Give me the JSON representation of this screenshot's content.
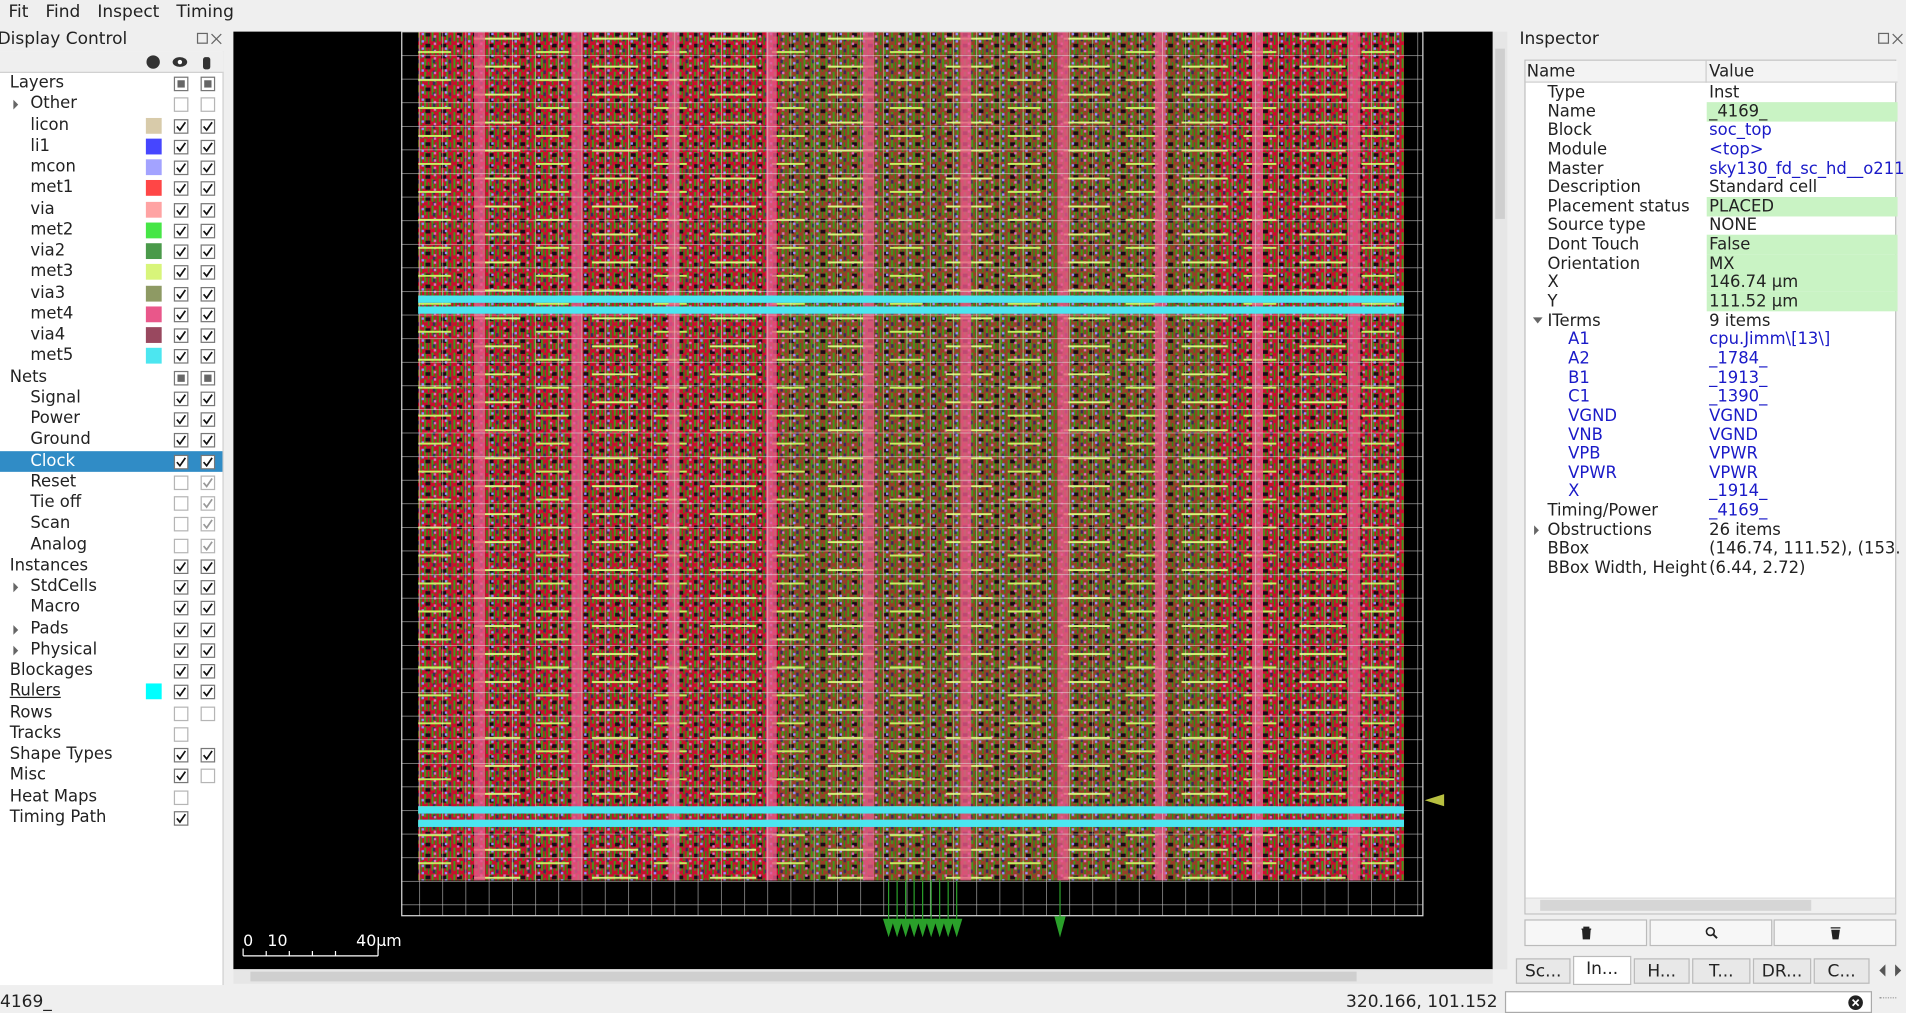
{
  "menu": [
    "Fit",
    "Find",
    "Inspect",
    "Timing"
  ],
  "display_control": {
    "title": "Display Control",
    "rows": [
      {
        "label": "Layers",
        "level": 0,
        "checks": [
          "mixed",
          "mixed"
        ]
      },
      {
        "label": "Other",
        "level": 1,
        "expand": "closed",
        "checks": [
          "off",
          "off"
        ]
      },
      {
        "label": "licon",
        "level": 1,
        "swatch": "#d8cbaa",
        "checks": [
          "on",
          "on"
        ]
      },
      {
        "label": "li1",
        "level": 1,
        "swatch": "#4646ff",
        "checks": [
          "on",
          "on"
        ]
      },
      {
        "label": "mcon",
        "level": 1,
        "swatch": "#a3a3ff",
        "checks": [
          "on",
          "on"
        ]
      },
      {
        "label": "met1",
        "level": 1,
        "swatch": "#ff4646",
        "checks": [
          "on",
          "on"
        ]
      },
      {
        "label": "via",
        "level": 1,
        "swatch": "#ffa3a3",
        "checks": [
          "on",
          "on"
        ]
      },
      {
        "label": "met2",
        "level": 1,
        "swatch": "#46e646",
        "checks": [
          "on",
          "on"
        ]
      },
      {
        "label": "via2",
        "level": 1,
        "swatch": "#4a9a4a",
        "checks": [
          "on",
          "on"
        ]
      },
      {
        "label": "met3",
        "level": 1,
        "swatch": "#d8f57a",
        "checks": [
          "on",
          "on"
        ]
      },
      {
        "label": "via3",
        "level": 1,
        "swatch": "#8e9a64",
        "checks": [
          "on",
          "on"
        ]
      },
      {
        "label": "met4",
        "level": 1,
        "swatch": "#e9578a",
        "checks": [
          "on",
          "on"
        ]
      },
      {
        "label": "via4",
        "level": 1,
        "swatch": "#99485f",
        "checks": [
          "on",
          "on"
        ]
      },
      {
        "label": "met5",
        "level": 1,
        "swatch": "#4ce6f0",
        "checks": [
          "on",
          "on"
        ]
      },
      {
        "label": "Nets",
        "level": 0,
        "checks": [
          "mixed",
          "mixed"
        ]
      },
      {
        "label": "Signal",
        "level": 1,
        "checks": [
          "on",
          "on"
        ]
      },
      {
        "label": "Power",
        "level": 1,
        "checks": [
          "on",
          "on"
        ]
      },
      {
        "label": "Ground",
        "level": 1,
        "checks": [
          "on",
          "on"
        ]
      },
      {
        "label": "Clock",
        "level": 1,
        "selected": true,
        "checks": [
          "on",
          "on"
        ]
      },
      {
        "label": "Reset",
        "level": 1,
        "checks": [
          "off",
          "dim"
        ]
      },
      {
        "label": "Tie off",
        "level": 1,
        "checks": [
          "off",
          "dim"
        ]
      },
      {
        "label": "Scan",
        "level": 1,
        "checks": [
          "off",
          "dim"
        ]
      },
      {
        "label": "Analog",
        "level": 1,
        "checks": [
          "off",
          "dim"
        ]
      },
      {
        "label": "Instances",
        "level": 0,
        "checks": [
          "on",
          "on"
        ]
      },
      {
        "label": "StdCells",
        "level": 1,
        "expand": "closed",
        "checks": [
          "on",
          "on"
        ]
      },
      {
        "label": "Macro",
        "level": 1,
        "checks": [
          "on",
          "on"
        ]
      },
      {
        "label": "Pads",
        "level": 1,
        "expand": "closed",
        "checks": [
          "on",
          "on"
        ]
      },
      {
        "label": "Physical",
        "level": 1,
        "expand": "closed",
        "checks": [
          "on",
          "on"
        ]
      },
      {
        "label": "Blockages",
        "level": 0,
        "checks": [
          "on",
          "on"
        ]
      },
      {
        "label": "Rulers",
        "level": 0,
        "underline": true,
        "swatch": "#00ffff",
        "checks": [
          "on",
          "on"
        ]
      },
      {
        "label": "Rows",
        "level": 0,
        "checks": [
          "off",
          "off"
        ]
      },
      {
        "label": "Tracks",
        "level": 0,
        "checks": [
          "off"
        ]
      },
      {
        "label": "Shape Types",
        "level": 0,
        "checks": [
          "on",
          "on"
        ]
      },
      {
        "label": "Misc",
        "level": 0,
        "checks": [
          "on",
          "off"
        ]
      },
      {
        "label": "Heat Maps",
        "level": 0,
        "checks": [
          "off"
        ]
      },
      {
        "label": "Timing Path",
        "level": 0,
        "checks": [
          "on"
        ]
      }
    ]
  },
  "layout_view": {
    "scale_bar": [
      "0",
      "10",
      "40µm"
    ]
  },
  "inspector": {
    "title": "Inspector",
    "columns": [
      "Name",
      "Value"
    ],
    "rows": [
      {
        "name": "Type",
        "value": "Inst",
        "level": 0
      },
      {
        "name": "Name",
        "value": "_4169_",
        "level": 0,
        "highlight": true
      },
      {
        "name": "Block",
        "value": "soc_top",
        "level": 0,
        "link": "value"
      },
      {
        "name": "Module",
        "value": "<top>",
        "level": 0,
        "link": "value"
      },
      {
        "name": "Master",
        "value": "sky130_fd_sc_hd__o211",
        "level": 0,
        "link": "value"
      },
      {
        "name": "Description",
        "value": "Standard cell",
        "level": 0
      },
      {
        "name": "Placement status",
        "value": "PLACED",
        "level": 0,
        "highlight": true
      },
      {
        "name": "Source type",
        "value": "NONE",
        "level": 0
      },
      {
        "name": "Dont Touch",
        "value": "False",
        "level": 0,
        "highlight": true
      },
      {
        "name": "Orientation",
        "value": "MX",
        "level": 0,
        "highlight": true
      },
      {
        "name": "X",
        "value": "146.74 µm",
        "level": 0,
        "highlight": true
      },
      {
        "name": "Y",
        "value": "111.52 µm",
        "level": 0,
        "highlight": true
      },
      {
        "name": "ITerms",
        "value": "9 items",
        "level": 0,
        "expand": "open"
      },
      {
        "name": "A1",
        "value": "cpu.Jimm\\[13\\]",
        "level": 1,
        "link": "both"
      },
      {
        "name": "A2",
        "value": "_1784_",
        "level": 1,
        "link": "both"
      },
      {
        "name": "B1",
        "value": "_1913_",
        "level": 1,
        "link": "both"
      },
      {
        "name": "C1",
        "value": "_1390_",
        "level": 1,
        "link": "both"
      },
      {
        "name": "VGND",
        "value": "VGND",
        "level": 1,
        "link": "both"
      },
      {
        "name": "VNB",
        "value": "VGND",
        "level": 1,
        "link": "both"
      },
      {
        "name": "VPB",
        "value": "VPWR",
        "level": 1,
        "link": "both"
      },
      {
        "name": "VPWR",
        "value": "VPWR",
        "level": 1,
        "link": "both"
      },
      {
        "name": "X",
        "value": "_1914_",
        "level": 1,
        "link": "both"
      },
      {
        "name": "Timing/Power",
        "value": "_4169_",
        "level": 0,
        "link": "value"
      },
      {
        "name": "Obstructions",
        "value": "26 items",
        "level": 0,
        "expand": "closed"
      },
      {
        "name": "BBox",
        "value": "(146.74, 111.52), (153.",
        "level": 0
      },
      {
        "name": "BBox Width, Height",
        "value": "(6.44, 2.72)",
        "level": 0
      }
    ],
    "tabs": [
      "Sc...",
      "In...",
      "H...",
      "T...",
      "DR...",
      "C..."
    ],
    "active_tab": 1
  },
  "status": {
    "message": "4169_",
    "coordinates": "320.166, 101.152"
  }
}
